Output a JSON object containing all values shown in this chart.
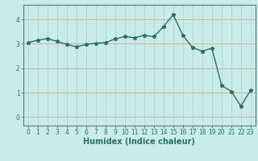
{
  "x": [
    0,
    1,
    2,
    3,
    4,
    5,
    6,
    7,
    8,
    9,
    10,
    11,
    12,
    13,
    14,
    15,
    16,
    17,
    18,
    19,
    20,
    21,
    22,
    23
  ],
  "y": [
    3.05,
    3.15,
    3.22,
    3.1,
    2.98,
    2.88,
    2.97,
    3.03,
    3.05,
    3.2,
    3.3,
    3.25,
    3.35,
    3.3,
    3.7,
    4.2,
    3.35,
    2.85,
    2.7,
    2.82,
    1.3,
    1.05,
    0.45,
    1.1
  ],
  "line_color": "#2d6e62",
  "marker": "*",
  "marker_size": 3.5,
  "bg_color": "#c8ede8",
  "plot_bg_color": "#c8ede8",
  "axis_color": "#2d6e62",
  "spine_color": "#5a7a75",
  "xlabel": "Humidex (Indice chaleur)",
  "xlim": [
    -0.5,
    23.5
  ],
  "ylim": [
    -0.35,
    4.6
  ],
  "yticks": [
    0,
    1,
    2,
    3,
    4
  ],
  "xticks": [
    0,
    1,
    2,
    3,
    4,
    5,
    6,
    7,
    8,
    9,
    10,
    11,
    12,
    13,
    14,
    15,
    16,
    17,
    18,
    19,
    20,
    21,
    22,
    23
  ],
  "tick_fontsize": 5.5,
  "xlabel_fontsize": 7.0,
  "hgrid_color": "#d4a0a0",
  "vgrid_color": "#a8d8d0",
  "bottom_bar_color": "#4a7a72",
  "line_width": 1.0
}
